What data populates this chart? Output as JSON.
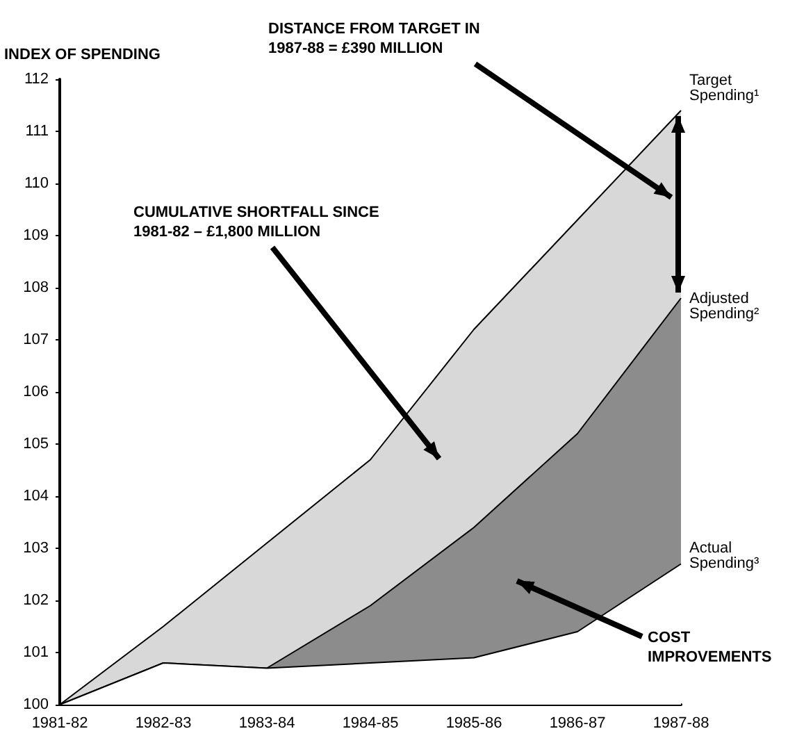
{
  "chart_data": {
    "type": "area",
    "ylabel": "INDEX OF SPENDING",
    "categories": [
      "1981-82",
      "1982-83",
      "1983-84",
      "1984-85",
      "1985-86",
      "1986-87",
      "1987-88"
    ],
    "series": [
      {
        "name": "Target Spending¹",
        "color": "#000000",
        "values": [
          100,
          101.5,
          103.1,
          104.7,
          107.2,
          109.3,
          111.4
        ]
      },
      {
        "name": "Adjusted Spending²",
        "color": "#000000",
        "values": [
          100,
          100.8,
          100.7,
          101.9,
          103.4,
          105.2,
          107.8
        ]
      },
      {
        "name": "Actual Spending³",
        "color": "#000000",
        "values": [
          100,
          100.8,
          100.7,
          100.8,
          100.9,
          101.4,
          102.7
        ]
      }
    ],
    "ylim": [
      100,
      112
    ],
    "yticks": [
      100,
      101,
      102,
      103,
      104,
      105,
      106,
      107,
      108,
      109,
      110,
      111,
      112
    ],
    "grid": false,
    "legend": "right",
    "annotations": [
      "DISTANCE FROM TARGET IN 1987-88 = £390 MILLION",
      "CUMULATIVE SHORTFALL SINCE 1981-82 – £1,800 MILLION",
      "COST IMPROVEMENTS"
    ]
  }
}
